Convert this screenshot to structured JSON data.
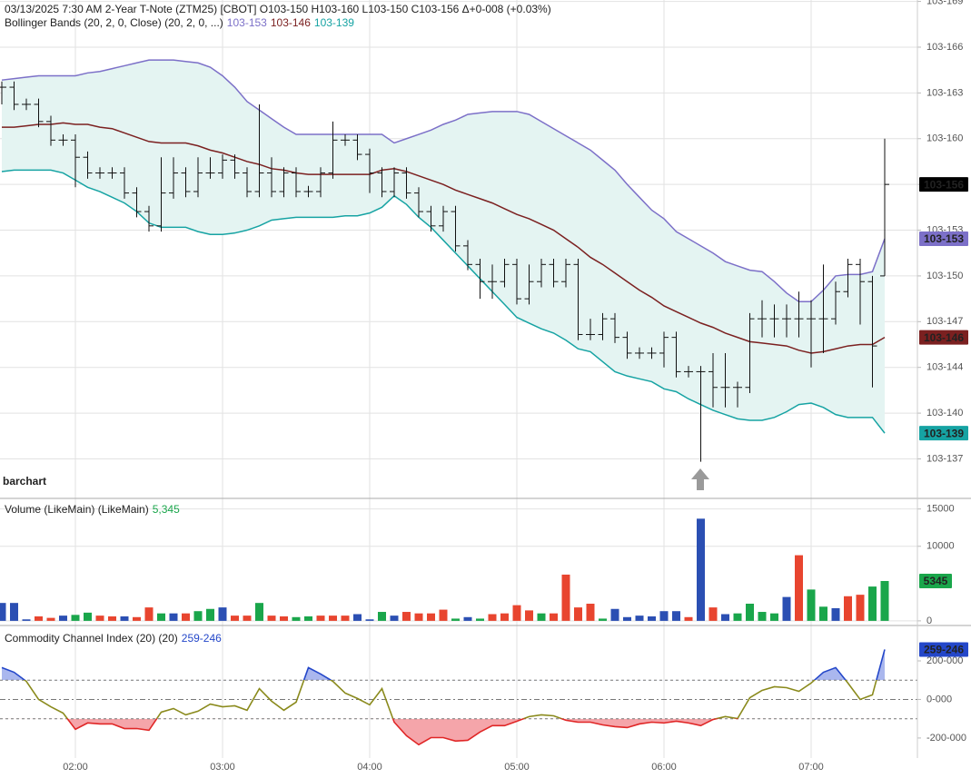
{
  "chart_data": [
    {
      "type": "ohlc",
      "title": "03/13/2025  7:30 AM 2-Year T-Note (ZTM25) [CBOT] O103-150 H103-160 L103-150 C103-156 Δ+0-008 (+0.03%)",
      "indicator": "Bollinger Bands (20, 2, 0, Close)  (20, 2, 0, ...)",
      "watermark": "barchart",
      "categories": [
        null,
        null,
        null,
        null,
        null,
        null,
        "02:00",
        null,
        null,
        null,
        null,
        null,
        null,
        null,
        null,
        null,
        null,
        null,
        "03:00",
        null,
        null,
        null,
        null,
        null,
        null,
        null,
        null,
        null,
        null,
        null,
        "04:00",
        null,
        null,
        null,
        null,
        null,
        null,
        null,
        null,
        null,
        null,
        null,
        "05:00",
        null,
        null,
        null,
        null,
        null,
        null,
        null,
        null,
        null,
        null,
        null,
        "06:00",
        null,
        null,
        null,
        null,
        null,
        null,
        null,
        null,
        null,
        null,
        null,
        "07:00",
        null,
        null,
        null,
        null,
        null,
        null
      ],
      "open": [
        16.32,
        16.32,
        16.2,
        16.2,
        16.08,
        15.95,
        15.95,
        15.83,
        15.72,
        15.72,
        15.72,
        15.58,
        15.45,
        15.35,
        15.58,
        15.72,
        15.59,
        15.72,
        15.72,
        15.81,
        15.72,
        15.59,
        15.72,
        15.59,
        15.72,
        15.59,
        15.59,
        15.72,
        15.95,
        15.95,
        15.85,
        15.72,
        15.59,
        15.72,
        15.58,
        15.45,
        15.35,
        15.45,
        15.21,
        15.08,
        14.96,
        14.96,
        15.08,
        14.84,
        14.96,
        15.08,
        14.96,
        15.08,
        14.59,
        14.59,
        14.7,
        14.57,
        14.46,
        14.46,
        14.46,
        14.57,
        14.33,
        14.33,
        14.33,
        14.22,
        14.22,
        14.22,
        14.7,
        14.7,
        14.7,
        14.7,
        14.7,
        14.7,
        14.7,
        14.89,
        15.08,
        14.96,
        15.0
      ],
      "high": [
        16.36,
        16.36,
        16.24,
        16.24,
        16.12,
        15.99,
        15.99,
        15.87,
        15.76,
        15.76,
        15.76,
        15.62,
        15.49,
        15.83,
        15.83,
        15.76,
        15.83,
        15.83,
        15.85,
        15.85,
        15.76,
        16.2,
        15.83,
        15.76,
        15.76,
        15.63,
        15.76,
        16.08,
        15.99,
        15.99,
        15.89,
        15.76,
        15.76,
        15.76,
        15.62,
        15.49,
        15.49,
        15.49,
        15.25,
        15.12,
        15.08,
        15.12,
        15.12,
        15.08,
        15.12,
        15.12,
        15.12,
        15.12,
        14.7,
        14.74,
        14.74,
        14.61,
        14.5,
        14.5,
        14.61,
        14.61,
        14.37,
        14.37,
        14.46,
        14.46,
        14.26,
        14.74,
        14.83,
        14.8,
        14.8,
        14.89,
        14.83,
        15.08,
        14.96,
        15.12,
        15.12,
        15.0,
        15.96
      ],
      "low": [
        16.2,
        16.16,
        16.16,
        16.04,
        15.91,
        15.91,
        15.62,
        15.68,
        15.68,
        15.68,
        15.54,
        15.41,
        15.31,
        15.31,
        15.54,
        15.55,
        15.55,
        15.68,
        15.68,
        15.68,
        15.55,
        15.55,
        15.55,
        15.55,
        15.55,
        15.55,
        15.55,
        15.68,
        15.91,
        15.81,
        15.58,
        15.55,
        15.55,
        15.54,
        15.41,
        15.31,
        15.31,
        15.17,
        15.04,
        14.84,
        14.84,
        14.92,
        14.8,
        14.8,
        14.92,
        14.92,
        14.92,
        14.55,
        14.55,
        14.55,
        14.53,
        14.42,
        14.42,
        14.42,
        14.36,
        14.29,
        14.29,
        13.7,
        14.08,
        14.08,
        14.08,
        14.18,
        14.57,
        14.57,
        14.57,
        14.57,
        14.36,
        14.46,
        14.66,
        14.85,
        14.66,
        14.22,
        15.0
      ],
      "close": [
        16.32,
        16.2,
        16.2,
        16.08,
        15.95,
        15.95,
        15.83,
        15.72,
        15.72,
        15.72,
        15.58,
        15.45,
        15.35,
        15.58,
        15.72,
        15.59,
        15.72,
        15.72,
        15.81,
        15.72,
        15.59,
        15.72,
        15.59,
        15.72,
        15.59,
        15.59,
        15.72,
        15.95,
        15.95,
        15.85,
        15.72,
        15.59,
        15.72,
        15.58,
        15.45,
        15.35,
        15.45,
        15.21,
        15.08,
        14.96,
        14.96,
        15.08,
        14.84,
        14.96,
        15.08,
        14.96,
        15.08,
        14.59,
        14.59,
        14.7,
        14.57,
        14.46,
        14.46,
        14.46,
        14.57,
        14.33,
        14.33,
        14.33,
        14.22,
        14.22,
        14.22,
        14.7,
        14.7,
        14.7,
        14.7,
        14.7,
        14.7,
        14.7,
        14.89,
        15.08,
        14.96,
        14.51,
        15.64
      ],
      "color": "#111111",
      "last_label": "103-156",
      "band_fill": "#e4f4f2",
      "series": [
        {
          "color": "#7c70c8",
          "last_label": "103-153",
          "values": [
            16.37,
            16.38,
            16.39,
            16.4,
            16.4,
            16.4,
            16.4,
            16.42,
            16.43,
            16.45,
            16.47,
            16.49,
            16.51,
            16.51,
            16.51,
            16.5,
            16.49,
            16.46,
            16.4,
            16.32,
            16.22,
            16.16,
            16.1,
            16.04,
            15.99,
            15.99,
            15.99,
            15.99,
            15.99,
            15.99,
            15.99,
            15.99,
            15.93,
            15.96,
            15.99,
            16.02,
            16.06,
            16.09,
            16.13,
            16.14,
            16.15,
            16.15,
            16.15,
            16.13,
            16.08,
            16.03,
            15.98,
            15.93,
            15.88,
            15.81,
            15.74,
            15.64,
            15.55,
            15.46,
            15.4,
            15.31,
            15.26,
            15.21,
            15.16,
            15.1,
            15.07,
            15.04,
            15.03,
            14.96,
            14.88,
            14.82,
            14.82,
            14.9,
            15.0,
            15.01,
            15.01,
            15.03,
            15.26
          ]
        },
        {
          "color": "#7b2020",
          "last_label": "103-146",
          "values": [
            16.04,
            16.04,
            16.05,
            16.06,
            16.06,
            16.07,
            16.06,
            16.06,
            16.04,
            16.03,
            16.0,
            15.97,
            15.94,
            15.93,
            15.93,
            15.93,
            15.91,
            15.88,
            15.86,
            15.83,
            15.8,
            15.78,
            15.75,
            15.74,
            15.72,
            15.71,
            15.71,
            15.71,
            15.71,
            15.71,
            15.71,
            15.74,
            15.75,
            15.73,
            15.7,
            15.67,
            15.64,
            15.6,
            15.57,
            15.54,
            15.51,
            15.47,
            15.43,
            15.4,
            15.36,
            15.32,
            15.26,
            15.2,
            15.13,
            15.08,
            15.02,
            14.96,
            14.9,
            14.85,
            14.79,
            14.75,
            14.71,
            14.67,
            14.64,
            14.6,
            14.57,
            14.54,
            14.53,
            14.52,
            14.51,
            14.48,
            14.46,
            14.47,
            14.49,
            14.51,
            14.52,
            14.52,
            14.57
          ]
        },
        {
          "color": "#16a3a3",
          "last_label": "103-139",
          "values": [
            15.73,
            15.74,
            15.74,
            15.74,
            15.74,
            15.72,
            15.67,
            15.62,
            15.59,
            15.55,
            15.51,
            15.45,
            15.37,
            15.34,
            15.34,
            15.34,
            15.31,
            15.29,
            15.29,
            15.3,
            15.32,
            15.35,
            15.39,
            15.4,
            15.41,
            15.41,
            15.41,
            15.41,
            15.42,
            15.42,
            15.44,
            15.48,
            15.56,
            15.5,
            15.41,
            15.34,
            15.25,
            15.16,
            15.07,
            14.98,
            14.89,
            14.8,
            14.71,
            14.67,
            14.63,
            14.6,
            14.55,
            14.49,
            14.47,
            14.4,
            14.33,
            14.3,
            14.28,
            14.26,
            14.21,
            14.19,
            14.14,
            14.1,
            14.06,
            14.03,
            14.0,
            13.99,
            13.99,
            14.01,
            14.05,
            14.1,
            14.11,
            14.08,
            14.03,
            14.01,
            14.01,
            14.01,
            13.9
          ]
        }
      ],
      "ylim": [
        13.45,
        16.93
      ],
      "yticks": [
        {
          "value": 13.72,
          "label": "103-137"
        },
        {
          "value": 14.04,
          "label": "103-140"
        },
        {
          "value": 14.36,
          "label": "103-144"
        },
        {
          "value": 14.68,
          "label": "103-147"
        },
        {
          "value": 15.0,
          "label": "103-150"
        },
        {
          "value": 15.32,
          "label": "103-153"
        },
        {
          "value": 15.64,
          "label": "103-156"
        },
        {
          "value": 15.96,
          "label": "103-160"
        },
        {
          "value": 16.28,
          "label": "103-163"
        },
        {
          "value": 16.6,
          "label": "103-166"
        },
        {
          "value": 16.92,
          "label": "103-169"
        }
      ],
      "grid": true
    },
    {
      "type": "bar",
      "title": "Volume (LikeMain)  (LikeMain)",
      "legend_value": "5,345",
      "legend_color": "#1aa64b",
      "last_label": "5345",
      "values": [
        2400,
        2400,
        200,
        600,
        400,
        700,
        800,
        1100,
        700,
        600,
        600,
        500,
        1800,
        1000,
        1000,
        1000,
        1300,
        1600,
        1800,
        700,
        700,
        2400,
        700,
        600,
        500,
        600,
        700,
        700,
        700,
        900,
        200,
        1200,
        700,
        1200,
        1000,
        1000,
        1500,
        300,
        500,
        300,
        900,
        1000,
        2100,
        1400,
        1000,
        1000,
        6200,
        1800,
        2300,
        300,
        1600,
        500,
        700,
        600,
        1300,
        1300,
        500,
        13700,
        1800,
        900,
        1000,
        2300,
        1200,
        1000,
        3200,
        8800,
        4200,
        1900,
        1700,
        3300,
        3500,
        4600,
        5345
      ],
      "colors": [
        "#2b4fb3",
        "#2b4fb3",
        "#2b4fb3",
        "#e8452f",
        "#e8452f",
        "#2b4fb3",
        "#1aa64b",
        "#1aa64b",
        "#e8452f",
        "#e8452f",
        "#2b4fb3",
        "#e8452f",
        "#e8452f",
        "#1aa64b",
        "#2b4fb3",
        "#e8452f",
        "#1aa64b",
        "#1aa64b",
        "#2b4fb3",
        "#e8452f",
        "#e8452f",
        "#1aa64b",
        "#e8452f",
        "#e8452f",
        "#1aa64b",
        "#1aa64b",
        "#e8452f",
        "#e8452f",
        "#e8452f",
        "#2b4fb3",
        "#2b4fb3",
        "#1aa64b",
        "#2b4fb3",
        "#e8452f",
        "#e8452f",
        "#e8452f",
        "#e8452f",
        "#1aa64b",
        "#2b4fb3",
        "#1aa64b",
        "#e8452f",
        "#e8452f",
        "#e8452f",
        "#e8452f",
        "#1aa64b",
        "#e8452f",
        "#e8452f",
        "#e8452f",
        "#e8452f",
        "#1aa64b",
        "#2b4fb3",
        "#2b4fb3",
        "#2b4fb3",
        "#2b4fb3",
        "#2b4fb3",
        "#2b4fb3",
        "#e8452f",
        "#2b4fb3",
        "#e8452f",
        "#2b4fb3",
        "#1aa64b",
        "#1aa64b",
        "#1aa64b",
        "#1aa64b",
        "#2b4fb3",
        "#e8452f",
        "#1aa64b",
        "#1aa64b",
        "#2b4fb3",
        "#e8452f",
        "#e8452f",
        "#1aa64b",
        "#1aa64b"
      ],
      "ylim": [
        -500,
        16300
      ],
      "yticks": [
        0,
        10000,
        15000
      ],
      "grid": true
    },
    {
      "type": "line",
      "title": "Commodity Channel Index (20)  (20)",
      "legend_value": "259-246",
      "last_label": "259-246",
      "values": [
        165,
        141,
        94,
        0,
        -38,
        -71,
        -155,
        -122,
        -127,
        -127,
        -151,
        -151,
        -160,
        -66,
        -47,
        -80,
        -61,
        -24,
        -38,
        -33,
        -56,
        56,
        -9,
        -56,
        -14,
        165,
        132,
        94,
        33,
        5,
        -28,
        56,
        -118,
        -188,
        -235,
        -198,
        -198,
        -216,
        -212,
        -169,
        -136,
        -136,
        -113,
        -89,
        -80,
        -85,
        -108,
        -118,
        -118,
        -132,
        -141,
        -146,
        -127,
        -118,
        -122,
        -113,
        -122,
        -136,
        -104,
        -89,
        -99,
        9,
        47,
        66,
        61,
        42,
        85,
        141,
        165,
        85,
        0,
        24,
        259
      ],
      "color": "#8a8a1c",
      "above_color": "#2447c9",
      "below_color": "#e02626",
      "above_fill": "#aab7ee",
      "below_fill": "#f5a5aa",
      "reference_lines": [
        100,
        0,
        -100
      ],
      "ylim": [
        -304,
        379
      ],
      "yticks": [
        {
          "value": 200,
          "label": "200-000"
        },
        {
          "value": 0,
          "label": "0-000"
        },
        {
          "value": -200,
          "label": "-200-000"
        }
      ]
    }
  ]
}
